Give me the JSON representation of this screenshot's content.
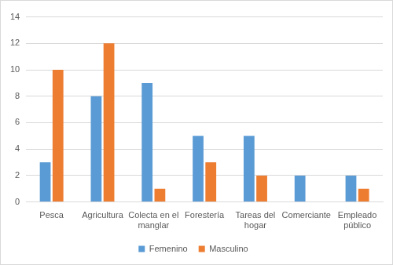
{
  "chart_data": {
    "type": "bar",
    "categories": [
      "Pesca",
      "Agricultura",
      "Colecta en el manglar",
      "Forestería",
      "Tareas del hogar",
      "Comerciante",
      "Empleado público"
    ],
    "series": [
      {
        "name": "Femenino",
        "color": "#5b9bd5",
        "values": [
          3,
          8,
          9,
          5,
          5,
          2,
          2
        ]
      },
      {
        "name": "Masculino",
        "color": "#ed7d31",
        "values": [
          10,
          12,
          1,
          3,
          2,
          0,
          1
        ]
      }
    ],
    "ylim": [
      0,
      14
    ],
    "yticks": [
      0,
      2,
      4,
      6,
      8,
      10,
      12,
      14
    ],
    "grid": true,
    "legend": "bottom"
  }
}
